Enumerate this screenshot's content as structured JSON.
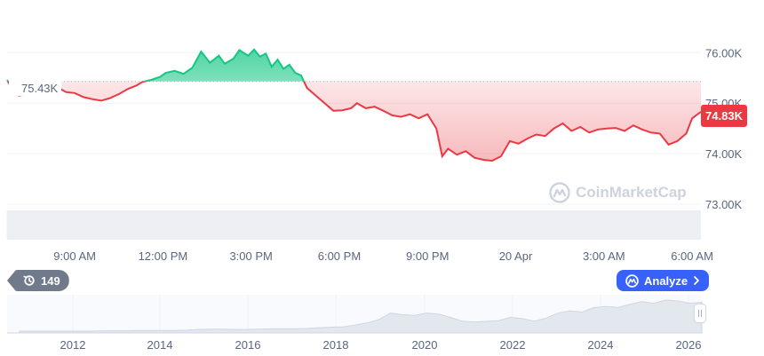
{
  "chart_data": {
    "type": "line",
    "y_unit": "USD",
    "y_ticks": [
      {
        "value": 76000,
        "label": "76.00K"
      },
      {
        "value": 75000,
        "label": "75.00K"
      },
      {
        "value": 74000,
        "label": "74.00K"
      },
      {
        "value": 73000,
        "label": "73.00K"
      }
    ],
    "ylim": [
      72300,
      76900
    ],
    "x_ticks": [
      {
        "t": 9,
        "label": "9:00 AM"
      },
      {
        "t": 12,
        "label": "12:00 PM"
      },
      {
        "t": 15,
        "label": "3:00 PM"
      },
      {
        "t": 18,
        "label": "6:00 PM"
      },
      {
        "t": 21,
        "label": "9:00 PM"
      },
      {
        "t": 24,
        "label": "20 Apr"
      },
      {
        "t": 27,
        "label": "3:00 AM"
      },
      {
        "t": 30,
        "label": "6:00 AM"
      }
    ],
    "xlim": [
      6.7,
      30.3
    ],
    "reference": {
      "value": 75430,
      "label": "75.43K"
    },
    "current": {
      "value": 74830,
      "label": "74.83K"
    },
    "series": [
      {
        "x": [
          6.7,
          6.9,
          7.1,
          7.4,
          7.6,
          8.1,
          8.4,
          8.7,
          9.0,
          9.3,
          9.6,
          9.9,
          10.2,
          10.5,
          10.8,
          11.1,
          11.3,
          11.6,
          11.9,
          12.1,
          12.4,
          12.7,
          13.0,
          13.3,
          13.6,
          13.9,
          14.1,
          14.4,
          14.6,
          14.9,
          15.1,
          15.3,
          15.5,
          15.7,
          15.9,
          16.1,
          16.3,
          16.5,
          16.7,
          16.9,
          17.2,
          17.5,
          17.8,
          18.1,
          18.4,
          18.6,
          18.9,
          19.2,
          19.5,
          19.8,
          20.1,
          20.4,
          20.7,
          21.0,
          21.3,
          21.5,
          21.7,
          22.0,
          22.3,
          22.6,
          22.9,
          23.2,
          23.5,
          23.8,
          24.1,
          24.4,
          24.7,
          25.0,
          25.3,
          25.6,
          25.9,
          26.2,
          26.5,
          26.8,
          27.1,
          27.4,
          27.7,
          28.0,
          28.3,
          28.6,
          28.9,
          29.2,
          29.5,
          29.8,
          30.0,
          30.3
        ],
        "y": [
          75460,
          75250,
          75150,
          75180,
          75260,
          75260,
          75320,
          75220,
          75200,
          75120,
          75080,
          75050,
          75100,
          75180,
          75280,
          75350,
          75420,
          75460,
          75520,
          75600,
          75640,
          75580,
          75700,
          76020,
          75800,
          75940,
          75780,
          75880,
          76050,
          75940,
          76060,
          75920,
          75980,
          75720,
          75860,
          75680,
          75760,
          75600,
          75550,
          75300,
          75150,
          75000,
          74850,
          74860,
          74900,
          75000,
          74900,
          74930,
          74850,
          74760,
          74730,
          74780,
          74700,
          74780,
          74500,
          73950,
          74100,
          73980,
          74050,
          73920,
          73880,
          73860,
          73950,
          74250,
          74200,
          74300,
          74380,
          74350,
          74500,
          74600,
          74450,
          74530,
          74420,
          74480,
          74500,
          74510,
          74450,
          74560,
          74480,
          74420,
          74400,
          74180,
          74250,
          74400,
          74700,
          74830
        ]
      }
    ],
    "colors": {
      "up": "#16c784",
      "down": "#ea3943",
      "axis_text": "#58667e",
      "grid": "#eff2f5",
      "volume": "#eff2f5",
      "brush_fill": "#eff2f5"
    },
    "grid": true,
    "watermark": "CoinMarketCap",
    "overview": {
      "x_ticks": [
        "2012",
        "2014",
        "2016",
        "2018",
        "2020",
        "2022",
        "2024",
        "2026"
      ],
      "history_count": "149",
      "levels": [
        0.0,
        0.0,
        0.0,
        0.0,
        0.0,
        0.0,
        0.0,
        0.01,
        0.01,
        0.01,
        0.02,
        0.02,
        0.02,
        0.02,
        0.03,
        0.05,
        0.06,
        0.06,
        0.05,
        0.05,
        0.06,
        0.07,
        0.07,
        0.07,
        0.08,
        0.1,
        0.12,
        0.13,
        0.18,
        0.25,
        0.35,
        0.55,
        0.5,
        0.48,
        0.55,
        0.52,
        0.42,
        0.3,
        0.28,
        0.3,
        0.32,
        0.42,
        0.38,
        0.3,
        0.4,
        0.55,
        0.62,
        0.58,
        0.72,
        0.75,
        0.72,
        0.82,
        0.9,
        0.85,
        0.95,
        0.92,
        0.85,
        0.88
      ]
    }
  },
  "analyze": {
    "label": "Analyze"
  }
}
